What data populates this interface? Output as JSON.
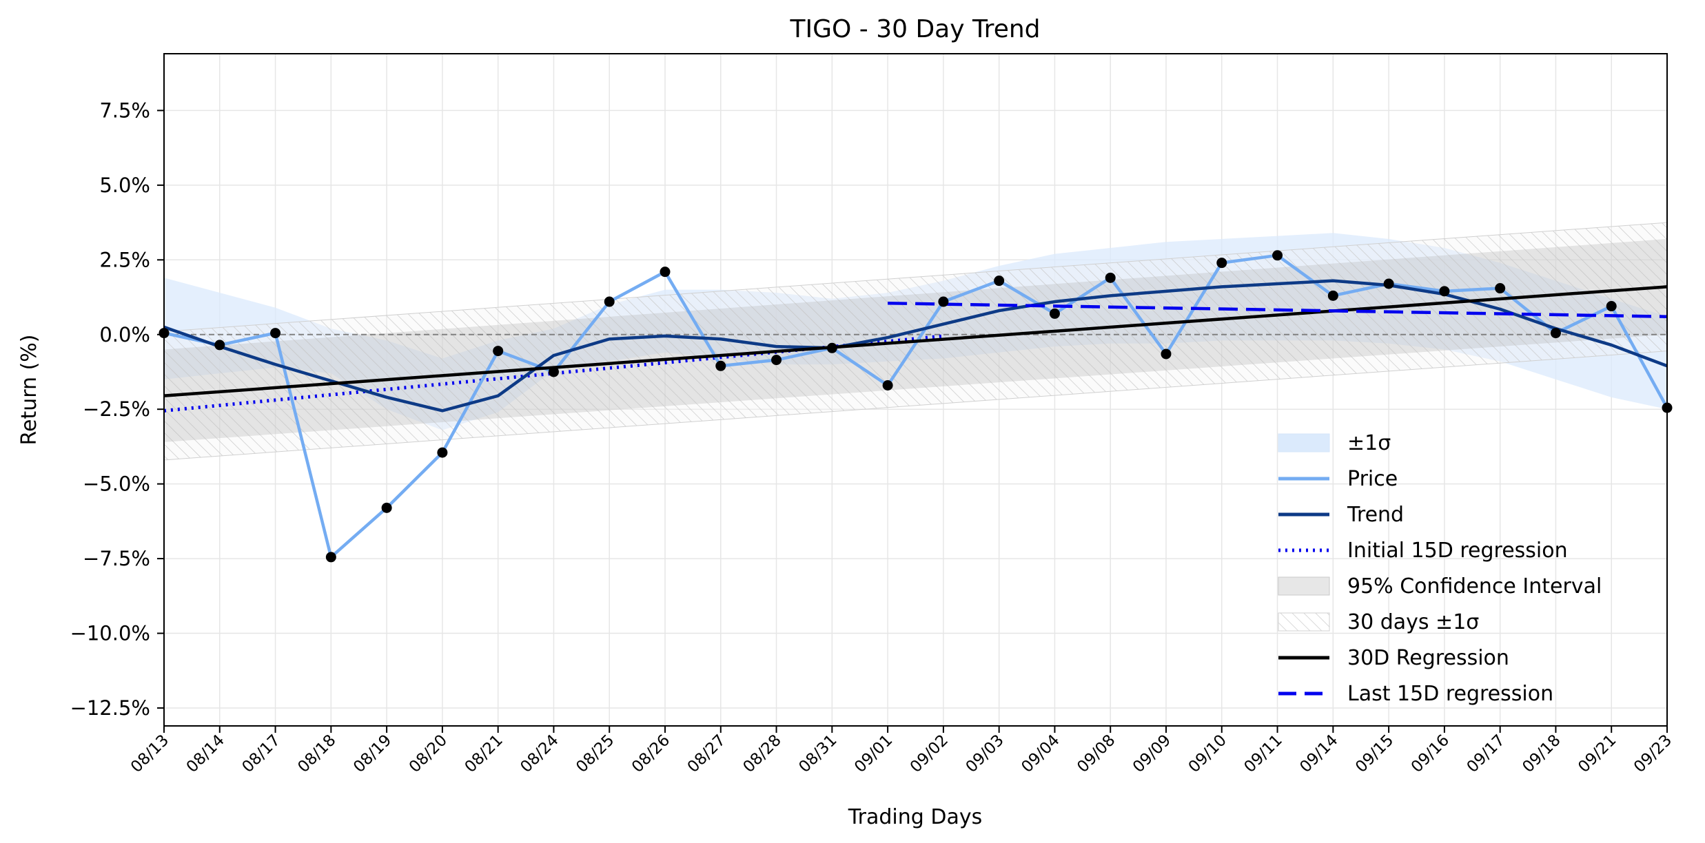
{
  "chart_data": {
    "type": "line",
    "title": "TIGO - 30 Day Trend",
    "xlabel": "Trading Days",
    "ylabel": "Return (%)",
    "categories": [
      "08/13",
      "08/14",
      "08/17",
      "08/18",
      "08/19",
      "08/20",
      "08/21",
      "08/24",
      "08/25",
      "08/26",
      "08/27",
      "08/28",
      "08/31",
      "09/01",
      "09/02",
      "09/03",
      "09/04",
      "09/08",
      "09/09",
      "09/10",
      "09/11",
      "09/14",
      "09/15",
      "09/16",
      "09/17",
      "09/18",
      "09/21",
      "09/23"
    ],
    "ylim": [
      -13.1,
      9.4
    ],
    "yticks": [
      -12.5,
      -10.0,
      -7.5,
      -5.0,
      -2.5,
      0.0,
      2.5,
      5.0,
      7.5
    ],
    "ytick_labels": [
      "−12.5%",
      "−10.0%",
      "−7.5%",
      "−5.0%",
      "−2.5%",
      "0.0%",
      "2.5%",
      "5.0%",
      "7.5%"
    ],
    "grid": true,
    "legend_position": "lower-right",
    "zero_line": 0,
    "series": [
      {
        "name": "Price",
        "style": "line-with-markers",
        "color": "#74acf2",
        "marker_color": "#000000",
        "values": [
          0.05,
          -0.35,
          0.05,
          -7.45,
          -5.8,
          -3.95,
          -0.55,
          -1.25,
          1.1,
          2.1,
          -1.05,
          -0.85,
          -0.45,
          -1.7,
          1.1,
          1.8,
          0.7,
          1.9,
          -0.65,
          2.4,
          2.65,
          1.3,
          1.7,
          1.45,
          1.55,
          0.05,
          0.95,
          -2.45
        ]
      },
      {
        "name": "Trend",
        "style": "solid",
        "color": "#0d3a86",
        "values": [
          0.25,
          -0.4,
          -1.0,
          -1.55,
          -2.1,
          -2.55,
          -2.05,
          -0.7,
          -0.15,
          -0.05,
          -0.15,
          -0.4,
          -0.45,
          -0.1,
          0.35,
          0.8,
          1.1,
          1.3,
          1.45,
          1.6,
          1.7,
          1.8,
          1.65,
          1.35,
          0.85,
          0.2,
          -0.35,
          -1.05
        ]
      },
      {
        "name": "Initial 15D regression",
        "style": "dotted",
        "color": "#0000ee",
        "x_range": [
          "08/13",
          "09/02"
        ],
        "start": -2.55,
        "end": -0.05
      },
      {
        "name": "30D Regression",
        "style": "solid",
        "color": "#000000",
        "x_range": [
          "08/13",
          "09/23"
        ],
        "start": -2.05,
        "end": 1.6
      },
      {
        "name": "Last 15D regression",
        "style": "dashed",
        "color": "#0000ee",
        "x_range": [
          "09/01",
          "09/23"
        ],
        "start": 1.05,
        "end": 0.6
      }
    ],
    "bands": [
      {
        "name": "±1σ",
        "fill": "#dbeafc",
        "lower": [
          -1.5,
          -1.3,
          -1.1,
          -1.3,
          -2.5,
          -3.2,
          -2.6,
          -1.2,
          -0.9,
          -0.6,
          -0.8,
          -1.0,
          -1.0,
          -0.9,
          -0.8,
          -0.6,
          -0.4,
          -0.3,
          -0.3,
          -0.2,
          -0.2,
          -0.2,
          -0.3,
          -0.5,
          -0.9,
          -1.5,
          -2.1,
          -2.5
        ],
        "upper": [
          1.9,
          1.4,
          0.9,
          0.2,
          -0.2,
          -0.8,
          -0.2,
          0.2,
          1.0,
          1.5,
          1.5,
          1.4,
          1.2,
          1.4,
          1.8,
          2.3,
          2.7,
          2.9,
          3.1,
          3.2,
          3.3,
          3.4,
          3.2,
          2.9,
          2.4,
          1.8,
          1.2,
          0.6
        ]
      },
      {
        "name": "95% Confidence Interval",
        "fill": "#b9b9b9",
        "x_range": [
          "08/13",
          "09/23"
        ],
        "lower_start": -3.6,
        "lower_end": 0.0,
        "upper_start": -0.5,
        "upper_end": 3.2
      },
      {
        "name": "30 days ±1σ",
        "fill": "hatch",
        "x_range": [
          "08/13",
          "09/23"
        ],
        "lower_start": -4.2,
        "lower_end": -0.55,
        "upper_start": 0.1,
        "upper_end": 3.75
      }
    ],
    "legend": [
      "±1σ",
      "Price",
      "Trend",
      "Initial 15D regression",
      "95% Confidence Interval",
      "30 days ±1σ",
      "30D Regression",
      "Last 15D regression"
    ]
  }
}
